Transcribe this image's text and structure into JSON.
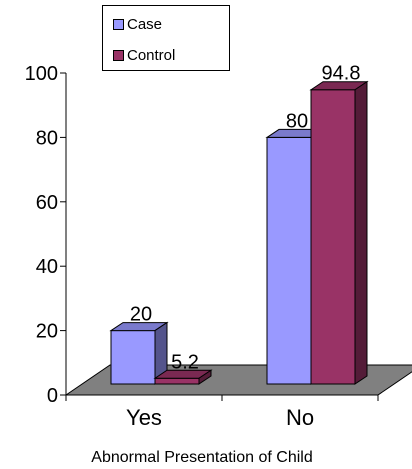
{
  "chart_data": {
    "type": "bar",
    "categories": [
      "Yes",
      "No"
    ],
    "series": [
      {
        "name": "Case",
        "values": [
          20,
          80
        ],
        "color": "#9999ff"
      },
      {
        "name": "Control",
        "values": [
          5.2,
          94.8
        ],
        "color": "#993366"
      }
    ],
    "xlabel": "Abnormal Presentation of Child",
    "ylabel": "",
    "ylim": [
      0,
      100
    ],
    "yticks": [
      0,
      20,
      40,
      60,
      80,
      100
    ],
    "data_labels": [
      "20",
      "5.2",
      "80",
      "94.8"
    ],
    "legend_position": "top-left",
    "floor_color": "#808080",
    "three_d": true
  }
}
